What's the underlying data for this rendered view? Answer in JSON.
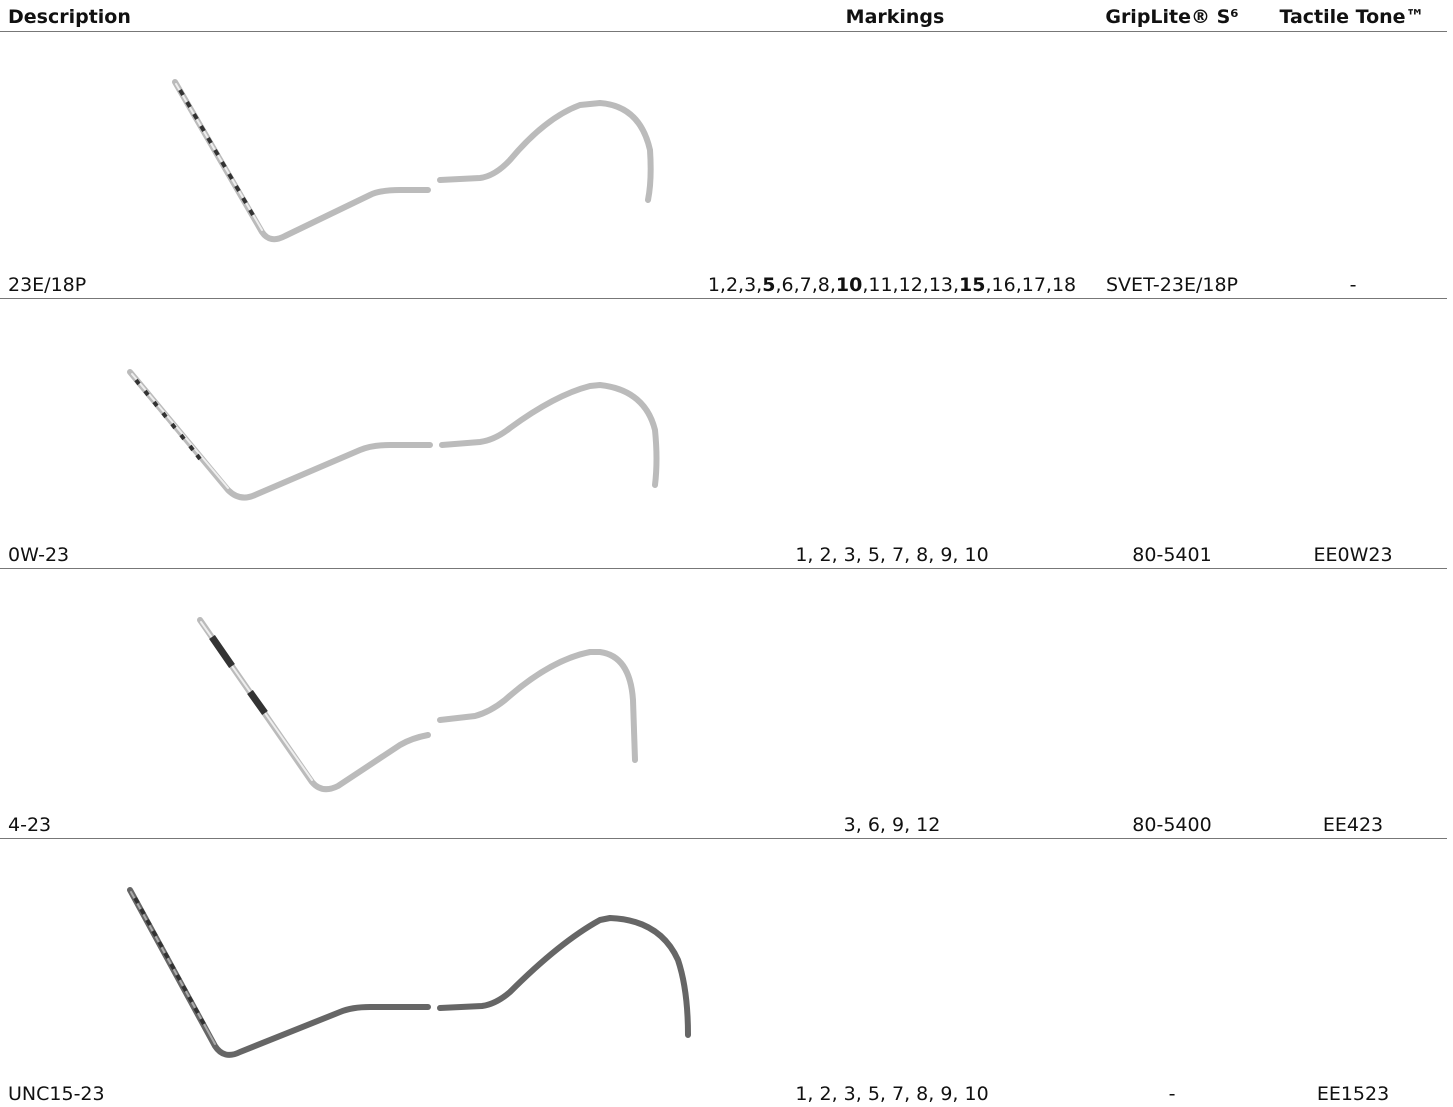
{
  "table": {
    "columns": [
      "Description",
      "Markings",
      "GripLite® S⁶",
      "Tactile Tone™"
    ],
    "rows": [
      {
        "description": "23E/18P",
        "markings": [
          {
            "text": "1,2,3,",
            "bold": false
          },
          {
            "text": "5",
            "bold": true
          },
          {
            "text": ",6,7,8,",
            "bold": false
          },
          {
            "text": "10",
            "bold": true
          },
          {
            "text": ",11,12,13,",
            "bold": false
          },
          {
            "text": "15",
            "bold": true
          },
          {
            "text": ",16,17,18",
            "bold": false
          }
        ],
        "griplite": "SVET-23E/18P",
        "tactile": "-"
      },
      {
        "description": "0W-23",
        "markings": [
          {
            "text": "1, 2, 3, 5, 7, 8, 9, 10",
            "bold": false
          }
        ],
        "griplite": "80-5401",
        "tactile": "EE0W23"
      },
      {
        "description": "4-23",
        "markings": [
          {
            "text": "3, 6, 9, 12",
            "bold": false
          }
        ],
        "griplite": "80-5400",
        "tactile": "EE423"
      },
      {
        "description": "UNC15-23",
        "markings": [
          {
            "text": "1, 2, 3, 5, 7, 8, 9, 10",
            "bold": false
          }
        ],
        "griplite": "-",
        "tactile": "EE1523"
      }
    ]
  }
}
